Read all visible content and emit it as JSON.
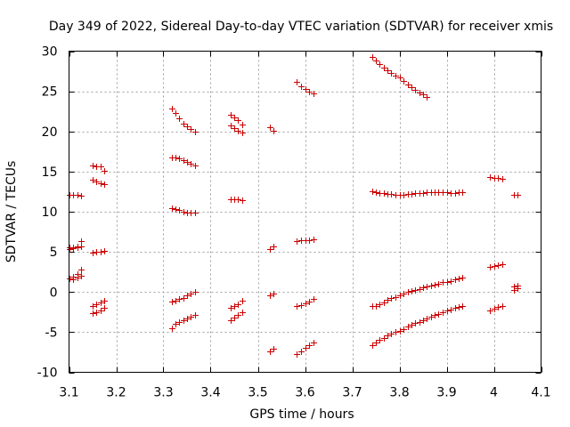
{
  "chart_data": {
    "type": "scatter",
    "title": "Day 349 of 2022, Sidereal Day-to-day VTEC variation (SDTVAR) for receiver xmis",
    "xlabel": "GPS time / hours",
    "ylabel": "SDTVAR / TECUs",
    "xlim": [
      3.1,
      4.1
    ],
    "ylim": [
      -10,
      30
    ],
    "xticks": [
      "3.1",
      "3.2",
      "3.3",
      "3.4",
      "3.5",
      "3.6",
      "3.7",
      "3.8",
      "3.9",
      "4",
      "4.1"
    ],
    "yticks": [
      "-10",
      "-5",
      "0",
      "5",
      "10",
      "15",
      "20",
      "25",
      "30"
    ],
    "xtick_values": [
      3.1,
      3.2,
      3.3,
      3.4,
      3.5,
      3.6,
      3.7,
      3.8,
      3.9,
      4.0,
      4.1
    ],
    "ytick_values": [
      -10,
      -5,
      0,
      5,
      10,
      15,
      20,
      25,
      30
    ],
    "grid": true,
    "marker": "plus",
    "color": "#cc0000",
    "series": [
      {
        "name": "s1",
        "x": [
          3.1,
          3.108,
          3.117,
          3.125
        ],
        "y": [
          12.1,
          12.1,
          12.1,
          12.0
        ]
      },
      {
        "name": "s2",
        "x": [
          3.1,
          3.108,
          3.117,
          3.125
        ],
        "y": [
          5.6,
          5.6,
          5.7,
          6.3
        ]
      },
      {
        "name": "s3",
        "x": [
          3.1,
          3.108,
          3.117,
          3.125
        ],
        "y": [
          5.4,
          5.5,
          5.6,
          5.7
        ]
      },
      {
        "name": "s4",
        "x": [
          3.1,
          3.108,
          3.117,
          3.125
        ],
        "y": [
          1.7,
          1.9,
          2.2,
          2.8
        ]
      },
      {
        "name": "s5",
        "x": [
          3.108,
          3.117,
          3.125
        ],
        "y": [
          1.6,
          1.8,
          2.0
        ]
      },
      {
        "name": "s6",
        "x": [
          3.15,
          3.158,
          3.167,
          3.175
        ],
        "y": [
          15.8,
          15.7,
          15.6,
          15.1
        ]
      },
      {
        "name": "s7",
        "x": [
          3.15,
          3.158,
          3.167,
          3.175
        ],
        "y": [
          14.0,
          13.8,
          13.6,
          13.4
        ]
      },
      {
        "name": "s8",
        "x": [
          3.15,
          3.158,
          3.167,
          3.175
        ],
        "y": [
          4.9,
          5.0,
          5.0,
          5.1
        ]
      },
      {
        "name": "s9",
        "x": [
          3.15,
          3.158,
          3.167,
          3.175
        ],
        "y": [
          -1.8,
          -1.5,
          -1.3,
          -1.1
        ]
      },
      {
        "name": "s10",
        "x": [
          3.15,
          3.158,
          3.167,
          3.175
        ],
        "y": [
          -2.6,
          -2.5,
          -2.3,
          -2.0
        ]
      },
      {
        "name": "s11",
        "x": [
          3.317,
          3.325,
          3.333,
          3.342,
          3.35,
          3.358,
          3.367
        ],
        "y": [
          22.9,
          22.3,
          21.6,
          21.0,
          20.6,
          20.3,
          20.0
        ]
      },
      {
        "name": "s12",
        "x": [
          3.317,
          3.325,
          3.333,
          3.342,
          3.35,
          3.358,
          3.367
        ],
        "y": [
          16.8,
          16.8,
          16.7,
          16.4,
          16.2,
          16.0,
          15.8
        ]
      },
      {
        "name": "s13",
        "x": [
          3.317,
          3.325,
          3.333,
          3.342,
          3.35,
          3.358,
          3.367
        ],
        "y": [
          10.4,
          10.3,
          10.2,
          10.0,
          9.9,
          9.9,
          9.9
        ]
      },
      {
        "name": "s14",
        "x": [
          3.317,
          3.325,
          3.333,
          3.342,
          3.35,
          3.358,
          3.367
        ],
        "y": [
          -1.2,
          -1.1,
          -0.9,
          -0.7,
          -0.4,
          -0.2,
          0.0
        ]
      },
      {
        "name": "s15",
        "x": [
          3.317,
          3.325,
          3.333,
          3.342,
          3.35,
          3.358,
          3.367
        ],
        "y": [
          -4.5,
          -4.0,
          -3.7,
          -3.5,
          -3.3,
          -3.1,
          -2.9
        ]
      },
      {
        "name": "s16",
        "x": [
          3.442,
          3.45,
          3.458,
          3.467
        ],
        "y": [
          22.1,
          21.8,
          21.4,
          20.9
        ]
      },
      {
        "name": "s17",
        "x": [
          3.442,
          3.45,
          3.458,
          3.467
        ],
        "y": [
          20.7,
          20.4,
          20.1,
          19.9
        ]
      },
      {
        "name": "s18",
        "x": [
          3.442,
          3.45,
          3.458,
          3.467
        ],
        "y": [
          11.5,
          11.5,
          11.5,
          11.4
        ]
      },
      {
        "name": "s19",
        "x": [
          3.442,
          3.45,
          3.458,
          3.467
        ],
        "y": [
          -2.0,
          -1.8,
          -1.5,
          -1.1
        ]
      },
      {
        "name": "s20",
        "x": [
          3.442,
          3.45,
          3.458,
          3.467
        ],
        "y": [
          -3.5,
          -3.2,
          -2.9,
          -2.5
        ]
      },
      {
        "name": "s21",
        "x": [
          3.525,
          3.533
        ],
        "y": [
          20.5,
          20.1
        ]
      },
      {
        "name": "s22",
        "x": [
          3.525,
          3.533
        ],
        "y": [
          5.4,
          5.7
        ]
      },
      {
        "name": "s23",
        "x": [
          3.525,
          3.533
        ],
        "y": [
          -0.4,
          -0.2
        ]
      },
      {
        "name": "s24",
        "x": [
          3.525,
          3.533
        ],
        "y": [
          -7.4,
          -7.1
        ]
      },
      {
        "name": "s25",
        "x": [
          3.583,
          3.592,
          3.6,
          3.608,
          3.617
        ],
        "y": [
          26.2,
          25.6,
          25.3,
          25.0,
          24.7
        ]
      },
      {
        "name": "s26",
        "x": [
          3.583,
          3.592,
          3.6,
          3.608,
          3.617
        ],
        "y": [
          6.3,
          6.4,
          6.4,
          6.5,
          6.6
        ]
      },
      {
        "name": "s27",
        "x": [
          3.583,
          3.592,
          3.6,
          3.608,
          3.617
        ],
        "y": [
          -1.7,
          -1.6,
          -1.4,
          -1.2,
          -0.9
        ]
      },
      {
        "name": "s28",
        "x": [
          3.583,
          3.592,
          3.6,
          3.608,
          3.617
        ],
        "y": [
          -7.7,
          -7.4,
          -7.0,
          -6.6,
          -6.3
        ]
      },
      {
        "name": "s29",
        "x": [
          3.742,
          3.75,
          3.758,
          3.767,
          3.775,
          3.783,
          3.792,
          3.8,
          3.808,
          3.817,
          3.825,
          3.833,
          3.842,
          3.85,
          3.858
        ],
        "y": [
          29.3,
          28.8,
          28.4,
          28.0,
          27.6,
          27.3,
          27.0,
          26.7,
          26.3,
          25.9,
          25.5,
          25.2,
          24.9,
          24.6,
          24.3
        ]
      },
      {
        "name": "s30",
        "x": [
          3.742,
          3.75,
          3.758,
          3.767,
          3.775,
          3.783,
          3.792,
          3.8,
          3.808,
          3.817,
          3.825,
          3.833,
          3.842,
          3.85,
          3.858,
          3.867,
          3.875,
          3.883,
          3.892,
          3.9,
          3.908,
          3.917,
          3.925,
          3.933
        ],
        "y": [
          12.5,
          12.4,
          12.3,
          12.3,
          12.2,
          12.2,
          12.1,
          12.1,
          12.1,
          12.2,
          12.2,
          12.3,
          12.3,
          12.3,
          12.4,
          12.4,
          12.4,
          12.4,
          12.4,
          12.4,
          12.3,
          12.3,
          12.4,
          12.4
        ]
      },
      {
        "name": "s31",
        "x": [
          3.742,
          3.75,
          3.758,
          3.767,
          3.775,
          3.783,
          3.792,
          3.8,
          3.808,
          3.817,
          3.825,
          3.833,
          3.842,
          3.85,
          3.858,
          3.867,
          3.875,
          3.883,
          3.892,
          3.9,
          3.908,
          3.917,
          3.925,
          3.933
        ],
        "y": [
          -1.8,
          -1.7,
          -1.5,
          -1.3,
          -1.0,
          -0.8,
          -0.6,
          -0.4,
          -0.2,
          0.0,
          0.1,
          0.3,
          0.4,
          0.6,
          0.7,
          0.8,
          0.9,
          1.0,
          1.2,
          1.3,
          1.4,
          1.6,
          1.7,
          1.8
        ]
      },
      {
        "name": "s32",
        "x": [
          3.742,
          3.75,
          3.758,
          3.767,
          3.775,
          3.783,
          3.792,
          3.8,
          3.808,
          3.817,
          3.825,
          3.833,
          3.842,
          3.85,
          3.858,
          3.867,
          3.875,
          3.883,
          3.892,
          3.9,
          3.908,
          3.917,
          3.925,
          3.933
        ],
        "y": [
          -6.6,
          -6.3,
          -6.0,
          -5.7,
          -5.4,
          -5.2,
          -5.0,
          -4.8,
          -4.6,
          -4.3,
          -4.1,
          -3.9,
          -3.7,
          -3.5,
          -3.3,
          -3.1,
          -2.9,
          -2.7,
          -2.5,
          -2.3,
          -2.2,
          -2.0,
          -1.9,
          -1.8
        ]
      },
      {
        "name": "s33",
        "x": [
          3.992,
          4.0,
          4.008,
          4.017
        ],
        "y": [
          14.3,
          14.2,
          14.2,
          14.1
        ]
      },
      {
        "name": "s34",
        "x": [
          3.992,
          4.0,
          4.008,
          4.017
        ],
        "y": [
          3.1,
          3.2,
          3.3,
          3.5
        ]
      },
      {
        "name": "s35",
        "x": [
          3.992,
          4.0,
          4.008,
          4.017
        ],
        "y": [
          -2.3,
          -2.1,
          -1.9,
          -1.8
        ]
      },
      {
        "name": "s36",
        "x": [
          4.042,
          4.05
        ],
        "y": [
          12.1,
          12.1
        ]
      },
      {
        "name": "s37",
        "x": [
          4.042,
          4.05
        ],
        "y": [
          0.7,
          0.8
        ]
      },
      {
        "name": "s38",
        "x": [
          4.042,
          4.05
        ],
        "y": [
          0.3,
          0.5
        ]
      }
    ]
  }
}
